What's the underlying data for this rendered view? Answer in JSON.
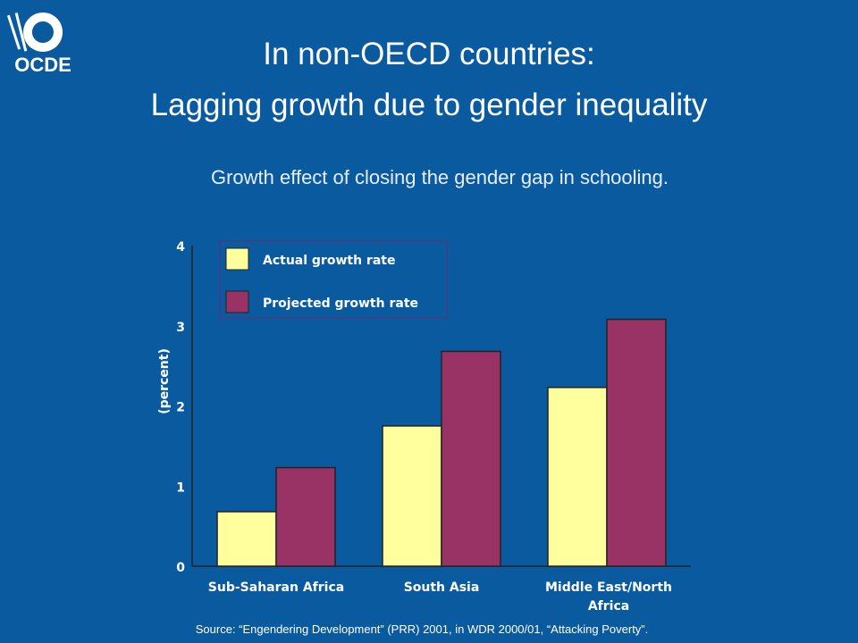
{
  "header": {
    "logo_text": "OCDE",
    "title_line1": "In non-OECD countries:",
    "title_line2": "Lagging growth due to gender inequality",
    "subtitle": "Growth effect of closing the gender gap in schooling."
  },
  "footer": {
    "source": "Source: “Engendering Development” (PRR) 2001, in WDR 2000/01, “Attacking Poverty”."
  },
  "chart_data": {
    "type": "bar",
    "categories": [
      "Sub-Saharan Africa",
      "South Asia",
      "Middle East/North Africa"
    ],
    "category_lines": [
      [
        "Sub-Saharan Africa"
      ],
      [
        "South Asia"
      ],
      [
        "Middle East/North",
        "Africa"
      ]
    ],
    "series": [
      {
        "name": "Actual growth rate",
        "values": [
          0.68,
          1.75,
          2.23
        ],
        "color": "#ffff9e"
      },
      {
        "name": "Projected growth rate",
        "values": [
          1.23,
          2.68,
          3.08
        ],
        "color": "#993366"
      }
    ],
    "ylabel": "(percent)",
    "ylim": [
      0,
      4
    ],
    "yticks": [
      0,
      1,
      2,
      3,
      4
    ],
    "legend_position": "top-left",
    "grid": false
  }
}
